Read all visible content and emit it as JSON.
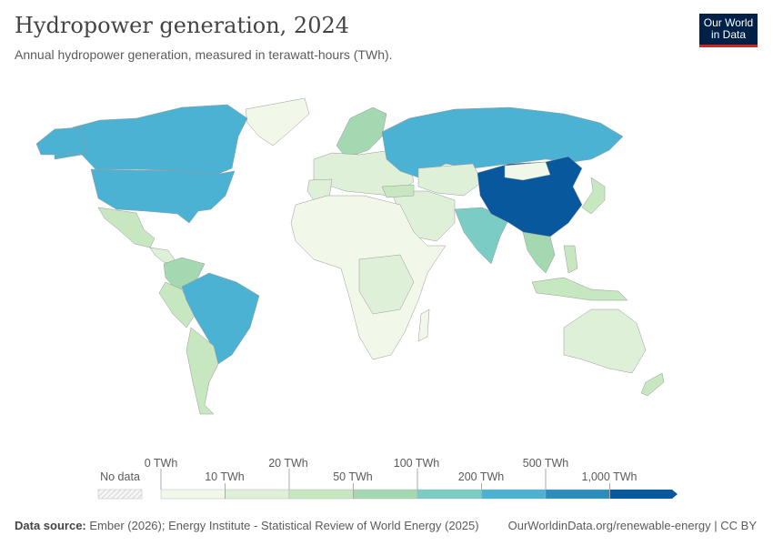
{
  "header": {
    "title": "Hydropower generation, 2024",
    "subtitle": "Annual hydropower generation, measured in terawatt-hours (TWh).",
    "logo_line1": "Our World",
    "logo_line2": "in Data"
  },
  "legend": {
    "no_data": "No data",
    "top_labels": [
      "0 TWh",
      "20 TWh",
      "100 TWh",
      "500 TWh"
    ],
    "bottom_labels": [
      "10 TWh",
      "50 TWh",
      "200 TWh",
      "1,000 TWh"
    ],
    "bin_colors": [
      "#f1f8e9",
      "#dff0d8",
      "#c7e7c0",
      "#a3d8b0",
      "#7accc4",
      "#4cb2d3",
      "#2b8cbe",
      "#08589e"
    ],
    "no_data_color": "#eeeeee"
  },
  "footer": {
    "source_label": "Data source:",
    "source_text": "Ember (2026); Energy Institute - Statistical Review of World Energy (2025)",
    "link": "OurWorldinData.org/renewable-energy | CC BY"
  }
}
